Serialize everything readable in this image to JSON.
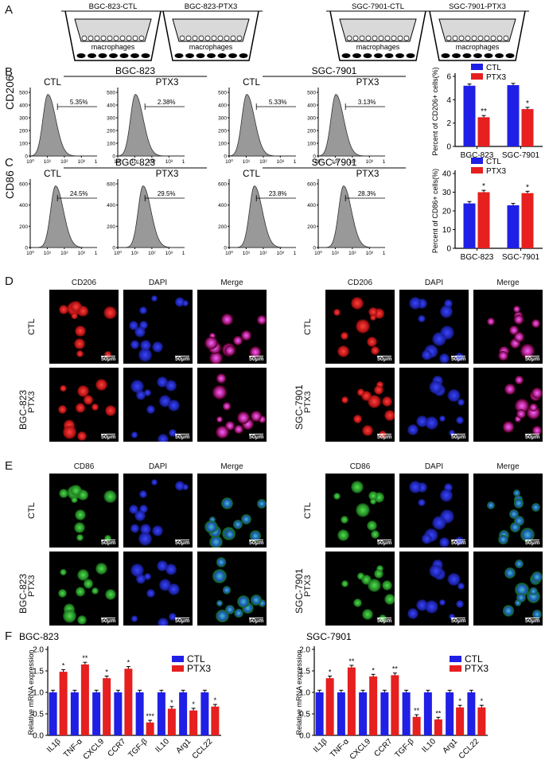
{
  "panels": {
    "A": "A",
    "B": "B",
    "C": "C",
    "D": "D",
    "E": "E",
    "F": "F"
  },
  "panel_a": {
    "wells": [
      "BGC-823-CTL",
      "BGC-823-PTX3",
      "SGC-7901-CTL",
      "SGC-7901-PTX3"
    ],
    "well_label": "macrophages"
  },
  "flow": {
    "markers": {
      "B": "CD206",
      "C": "CD86"
    },
    "cell_lines": [
      "BGC-823",
      "SGC-7901"
    ],
    "conditions": [
      "CTL",
      "PTX3"
    ],
    "y_ticks": [
      "0",
      "100",
      "200",
      "300",
      "400",
      "500"
    ],
    "y_ticks_small": [
      "0",
      "200",
      "400",
      "600"
    ],
    "x_ticks": [
      "10⁰",
      "10¹",
      "10²",
      "10³",
      "10⁴"
    ],
    "B_pct": [
      "5.35%",
      "2.38%",
      "5.33%",
      "3.13%"
    ],
    "C_pct": [
      "24.5%",
      "29.5%",
      "23.8%",
      "28.3%"
    ]
  },
  "chart_data": [
    {
      "type": "bar",
      "ylabel": "Percent of CD206+ cells(%)",
      "categories": [
        "BGC-823",
        "SGC-7901"
      ],
      "ylim": [
        0,
        6
      ],
      "yticks": [
        0,
        2,
        4,
        6
      ],
      "series": [
        {
          "name": "CTL",
          "color": "#1f1fe6",
          "values": [
            5.2,
            5.25
          ]
        },
        {
          "name": "PTX3",
          "color": "#e61f1f",
          "values": [
            2.5,
            3.2
          ]
        }
      ],
      "sig": [
        "**",
        "*"
      ]
    },
    {
      "type": "bar",
      "ylabel": "Percent of CD86+ cells(%)",
      "categories": [
        "BGC-823",
        "SGC-7901"
      ],
      "ylim": [
        0,
        40
      ],
      "yticks": [
        0,
        10,
        20,
        30,
        40
      ],
      "series": [
        {
          "name": "CTL",
          "color": "#1f1fe6",
          "values": [
            24,
            23
          ]
        },
        {
          "name": "PTX3",
          "color": "#e61f1f",
          "values": [
            30,
            29.5
          ]
        }
      ],
      "sig": [
        "*",
        "*"
      ]
    },
    {
      "type": "bar",
      "title": "BGC-823",
      "ylabel": "Relative mRNA expression",
      "categories": [
        "IL1β",
        "TNF-α",
        "CXCL9",
        "CCR7",
        "TGF-β",
        "IL10",
        "Arg1",
        "CCL22"
      ],
      "ylim": [
        0,
        2.0
      ],
      "yticks": [
        "0.0",
        "0.5",
        "1.0",
        "1.5",
        "2.0"
      ],
      "series": [
        {
          "name": "CTL",
          "color": "#1f1fe6",
          "values": [
            1,
            1,
            1,
            1,
            1,
            1,
            1,
            1
          ]
        },
        {
          "name": "PTX3",
          "color": "#e61f1f",
          "values": [
            1.48,
            1.65,
            1.33,
            1.55,
            0.3,
            0.62,
            0.58,
            0.67
          ]
        }
      ],
      "sig": [
        "*",
        "**",
        "*",
        "*",
        "***",
        "*",
        "*",
        "*"
      ]
    },
    {
      "type": "bar",
      "title": "SGC-7901",
      "ylabel": "Relative mRNA expression",
      "categories": [
        "IL1β",
        "TNF-α",
        "CXCL9",
        "CCR7",
        "TGF-β",
        "IL10",
        "Arg1",
        "CCL22"
      ],
      "ylim": [
        0,
        2.0
      ],
      "yticks": [
        "0.0",
        "0.5",
        "1.0",
        "1.5",
        "2.0"
      ],
      "series": [
        {
          "name": "CTL",
          "color": "#1f1fe6",
          "values": [
            1,
            1,
            1,
            1,
            1,
            1,
            1,
            1
          ]
        },
        {
          "name": "PTX3",
          "color": "#e61f1f",
          "values": [
            1.33,
            1.58,
            1.37,
            1.4,
            0.43,
            0.37,
            0.65,
            0.65
          ]
        }
      ],
      "sig": [
        "*",
        "**",
        "*",
        "**",
        "**",
        "**",
        "*",
        "*"
      ]
    }
  ],
  "microscopy": {
    "D_marker": "CD206",
    "E_marker": "CD86",
    "DAPI": "DAPI",
    "Merge": "Merge",
    "scale": "50μm",
    "rows": [
      "CTL",
      "PTX3"
    ],
    "groups": [
      "BGC-823",
      "SGC-7901"
    ]
  }
}
